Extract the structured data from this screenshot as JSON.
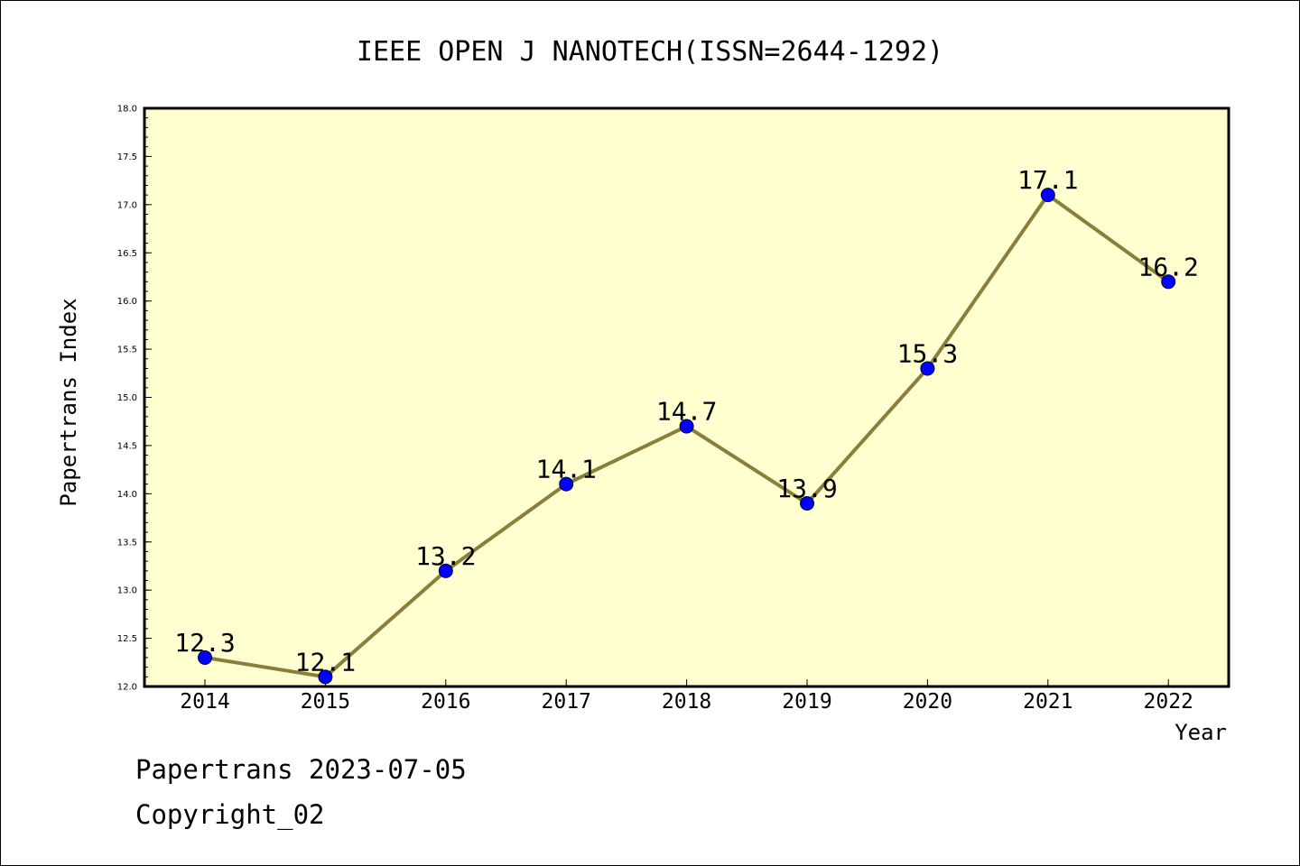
{
  "chart_data": {
    "type": "line",
    "title": "IEEE OPEN J NANOTECH(ISSN=2644-1292)",
    "xlabel": "Year",
    "ylabel": "Papertrans Index",
    "categories": [
      "2014",
      "2015",
      "2016",
      "2017",
      "2018",
      "2019",
      "2020",
      "2021",
      "2022"
    ],
    "series": [
      {
        "values": [
          12.3,
          12.1,
          13.2,
          14.1,
          14.7,
          13.9,
          15.3,
          17.1,
          16.2
        ],
        "data_labels": [
          "12.3",
          "12.1",
          "13.2",
          "14.1",
          "14.7",
          "13.9",
          "15.3",
          "17.1",
          "16.2"
        ],
        "line_color": "#8b7d3a",
        "marker_color": "#0000ff"
      }
    ],
    "ylim": [
      12.0,
      18.0
    ],
    "y_ticks": [
      "12.0",
      "12.5",
      "13.0",
      "13.5",
      "14.0",
      "14.5",
      "15.0",
      "15.5",
      "16.0",
      "16.5",
      "17.0",
      "17.5",
      "18.0"
    ],
    "plot_background": "#ffffd0",
    "grid": false
  },
  "footer": {
    "line1": "Papertrans 2023-07-05",
    "line2": "Copyright_02"
  }
}
